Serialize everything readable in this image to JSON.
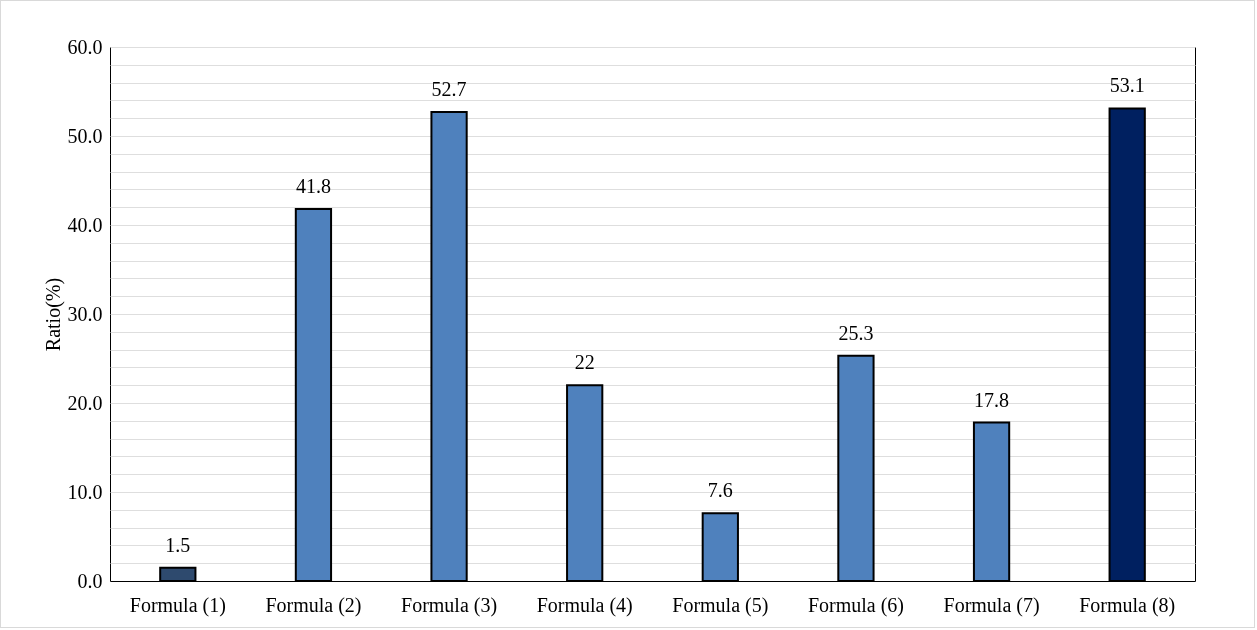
{
  "chart_data": {
    "type": "bar",
    "ylabel": "Ratio(%)",
    "categories": [
      "Formula (1)",
      "Formula (2)",
      "Formula (3)",
      "Formula (4)",
      "Formula (5)",
      "Formula (6)",
      "Formula (7)",
      "Formula (8)"
    ],
    "values": [
      1.5,
      41.8,
      52.7,
      22,
      7.6,
      25.3,
      17.8,
      53.1
    ],
    "colors": [
      "#2e4a6e",
      "#4f81bd",
      "#4f81bd",
      "#4f81bd",
      "#4f81bd",
      "#4f81bd",
      "#4f81bd",
      "#002060"
    ],
    "ylim": [
      0,
      60
    ],
    "yticks": [
      {
        "value": 0,
        "label": "0.0"
      },
      {
        "value": 2,
        "label": null
      },
      {
        "value": 4,
        "label": null
      },
      {
        "value": 6,
        "label": null
      },
      {
        "value": 8,
        "label": null
      },
      {
        "value": 10,
        "label": "10.0"
      },
      {
        "value": 12,
        "label": null
      },
      {
        "value": 14,
        "label": null
      },
      {
        "value": 16,
        "label": null
      },
      {
        "value": 18,
        "label": null
      },
      {
        "value": 20,
        "label": "20.0"
      },
      {
        "value": 22,
        "label": null
      },
      {
        "value": 24,
        "label": null
      },
      {
        "value": 26,
        "label": null
      },
      {
        "value": 28,
        "label": null
      },
      {
        "value": 30,
        "label": "30.0"
      },
      {
        "value": 32,
        "label": null
      },
      {
        "value": 34,
        "label": null
      },
      {
        "value": 36,
        "label": null
      },
      {
        "value": 38,
        "label": null
      },
      {
        "value": 40,
        "label": "40.0"
      },
      {
        "value": 42,
        "label": null
      },
      {
        "value": 44,
        "label": null
      },
      {
        "value": 46,
        "label": null
      },
      {
        "value": 48,
        "label": null
      },
      {
        "value": 50,
        "label": "50.0"
      },
      {
        "value": 52,
        "label": null
      },
      {
        "value": 54,
        "label": null
      },
      {
        "value": 56,
        "label": null
      },
      {
        "value": 58,
        "label": null
      },
      {
        "value": 60,
        "label": "60.0"
      }
    ],
    "grid": "y",
    "data_labels": true
  }
}
